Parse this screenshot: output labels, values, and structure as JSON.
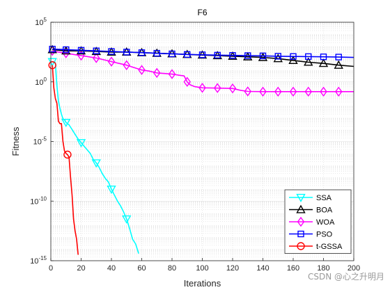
{
  "chart_data": {
    "type": "line",
    "title": "F6",
    "xlabel": "Iterations",
    "ylabel": "Fitness",
    "xlim": [
      0,
      200
    ],
    "ylim": [
      1e-15,
      100000
    ],
    "yscale": "log",
    "grid": true,
    "x_ticks": [
      0,
      20,
      40,
      60,
      80,
      100,
      120,
      140,
      160,
      180,
      200
    ],
    "y_ticks": [
      {
        "base": "10",
        "exp": "-15",
        "value": -15
      },
      {
        "base": "10",
        "exp": "-10",
        "value": -10
      },
      {
        "base": "10",
        "exp": "-5",
        "value": -5
      },
      {
        "base": "10",
        "exp": "0",
        "value": 0
      },
      {
        "base": "10",
        "exp": "5",
        "value": 5
      }
    ],
    "legend_position": "bottom-right",
    "series": [
      {
        "name": "SSA",
        "color": "#00FFFF",
        "marker": "triangle-down",
        "x": [
          1,
          3,
          4,
          5,
          6,
          7,
          8,
          9,
          10,
          12,
          14,
          16,
          18,
          20,
          22,
          24,
          26,
          28,
          30,
          32,
          34,
          36,
          38,
          40,
          42,
          44,
          46,
          48,
          50,
          52,
          54,
          56,
          58
        ],
        "log10_y": [
          1.7,
          1.6,
          -0.3,
          -1.6,
          -2.2,
          -2.7,
          -3.1,
          -3.2,
          -3.4,
          -3.6,
          -4.0,
          -4.4,
          -4.8,
          -5.1,
          -5.4,
          -5.7,
          -6.0,
          -6.5,
          -6.8,
          -7.2,
          -7.7,
          -8.1,
          -8.4,
          -9.0,
          -9.5,
          -10.0,
          -10.4,
          -10.9,
          -11.5,
          -12.3,
          -13.2,
          -13.6,
          -14.4
        ]
      },
      {
        "name": "BOA",
        "color": "#000000",
        "marker": "triangle-up",
        "x": [
          1,
          10,
          20,
          30,
          40,
          50,
          60,
          70,
          80,
          90,
          100,
          110,
          120,
          130,
          140,
          150,
          160,
          170,
          180,
          190,
          200
        ],
        "log10_y": [
          2.7,
          2.6,
          2.6,
          2.55,
          2.5,
          2.5,
          2.45,
          2.4,
          2.35,
          2.3,
          2.25,
          2.2,
          2.15,
          2.1,
          2.05,
          1.95,
          1.8,
          1.65,
          1.55,
          1.4,
          1.3
        ]
      },
      {
        "name": "WOA",
        "color": "#FF00FF",
        "marker": "diamond",
        "x": [
          1,
          5,
          10,
          15,
          20,
          25,
          30,
          35,
          40,
          45,
          50,
          55,
          60,
          65,
          70,
          75,
          80,
          85,
          88,
          90,
          92,
          95,
          100,
          110,
          120,
          125,
          130,
          140,
          150,
          160,
          170,
          180,
          190,
          200
        ],
        "log10_y": [
          2.6,
          2.5,
          2.4,
          2.3,
          2.2,
          2.1,
          2.0,
          1.85,
          1.7,
          1.55,
          1.4,
          1.2,
          1.0,
          0.9,
          0.75,
          0.7,
          0.65,
          0.55,
          0.5,
          0.0,
          -0.25,
          -0.4,
          -0.5,
          -0.52,
          -0.55,
          -0.7,
          -0.8,
          -0.82,
          -0.82,
          -0.82,
          -0.82,
          -0.82,
          -0.82,
          -0.82
        ]
      },
      {
        "name": "PSO",
        "color": "#0000FF",
        "marker": "square",
        "x": [
          1,
          10,
          20,
          30,
          40,
          50,
          60,
          70,
          80,
          90,
          100,
          110,
          120,
          130,
          140,
          150,
          160,
          170,
          180,
          190,
          200
        ],
        "log10_y": [
          2.75,
          2.7,
          2.65,
          2.6,
          2.55,
          2.5,
          2.45,
          2.4,
          2.35,
          2.3,
          2.27,
          2.24,
          2.22,
          2.2,
          2.18,
          2.15,
          2.13,
          2.12,
          2.1,
          2.08,
          2.05
        ]
      },
      {
        "name": "t-GSSA",
        "color": "#FF0000",
        "marker": "circle",
        "x": [
          1,
          2,
          3,
          4,
          5,
          6,
          7,
          8,
          9,
          10,
          11,
          12,
          13,
          14,
          15,
          16,
          17,
          18
        ],
        "log10_y": [
          1.4,
          -0.5,
          -1.4,
          -1.8,
          -3.3,
          -3.5,
          -3.5,
          -5.0,
          -5.8,
          -6.0,
          -6.1,
          -6.3,
          -8.0,
          -9.5,
          -11.5,
          -12.5,
          -13.2,
          -14.5
        ]
      }
    ],
    "annotations": [
      "CSDN @心之升明月"
    ]
  }
}
